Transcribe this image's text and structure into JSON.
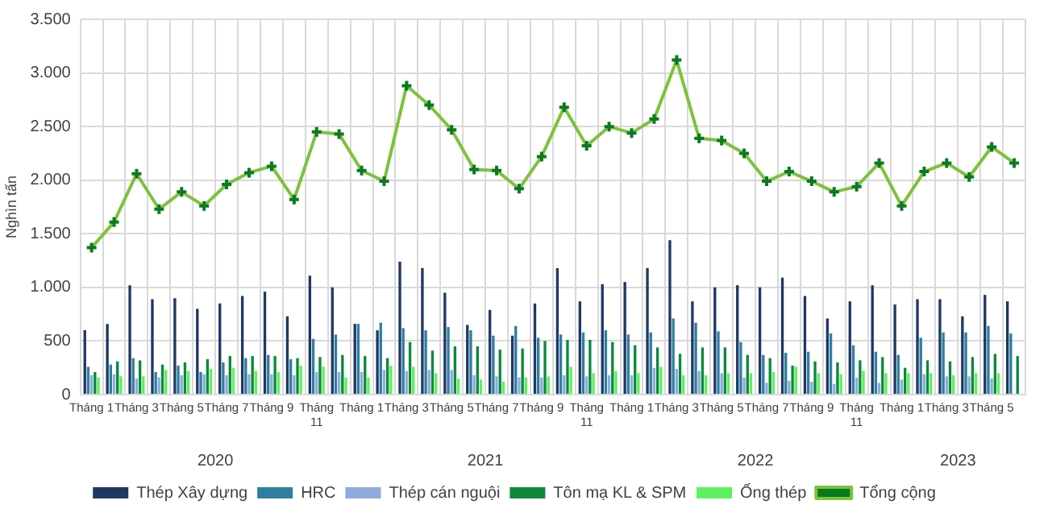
{
  "chart_data": {
    "type": "bar",
    "ylabel": "Nghìn tấn",
    "categories": [
      "Tháng 1",
      null,
      "Tháng 3",
      null,
      "Tháng 5",
      null,
      "Tháng 7",
      null,
      "Tháng 9",
      null,
      "Tháng 11",
      null,
      "Tháng 1",
      null,
      "Tháng 3",
      null,
      "Tháng 5",
      null,
      "Tháng 7",
      null,
      "Tháng 9",
      null,
      "Tháng 11",
      null,
      "Tháng 1",
      null,
      "Tháng 3",
      null,
      "Tháng 5",
      null,
      "Tháng 7",
      null,
      "Tháng 9",
      null,
      "Tháng 11",
      null,
      "Tháng 1",
      null,
      "Tháng 3",
      null,
      "Tháng 5",
      null
    ],
    "series": [
      {
        "name": "Thép Xây dựng",
        "color": "#1f3864",
        "values": [
          600,
          660,
          1020,
          890,
          900,
          800,
          850,
          920,
          960,
          730,
          1110,
          1000,
          660,
          600,
          1240,
          1180,
          950,
          650,
          790,
          550,
          850,
          1180,
          870,
          1030,
          1050,
          1180,
          1440,
          870,
          1000,
          1020,
          1000,
          1090,
          920,
          710,
          870,
          1020,
          840,
          890,
          890,
          730,
          930,
          870
        ]
      },
      {
        "name": "HRC",
        "color": "#2e7fa0",
        "values": [
          260,
          280,
          340,
          210,
          270,
          210,
          300,
          340,
          370,
          330,
          520,
          560,
          660,
          670,
          620,
          600,
          630,
          600,
          550,
          640,
          530,
          560,
          580,
          600,
          560,
          580,
          710,
          670,
          590,
          490,
          370,
          390,
          400,
          570,
          460,
          400,
          370,
          530,
          580,
          580,
          640,
          570
        ]
      },
      {
        "name": "Thép cán nguội",
        "color": "#8faadc",
        "values": [
          180,
          190,
          150,
          160,
          180,
          190,
          180,
          190,
          190,
          180,
          210,
          210,
          210,
          230,
          220,
          230,
          230,
          180,
          170,
          160,
          160,
          180,
          170,
          180,
          180,
          250,
          240,
          220,
          200,
          160,
          110,
          130,
          120,
          100,
          160,
          110,
          140,
          190,
          170,
          170,
          150,
          null
        ]
      },
      {
        "name": "Tôn mạ KL & SPM",
        "color": "#0b8a3a",
        "values": [
          210,
          310,
          320,
          280,
          300,
          330,
          360,
          360,
          360,
          340,
          350,
          370,
          360,
          340,
          490,
          410,
          450,
          450,
          420,
          430,
          500,
          510,
          510,
          490,
          460,
          440,
          380,
          440,
          440,
          370,
          340,
          270,
          310,
          300,
          320,
          350,
          250,
          320,
          310,
          350,
          380,
          360
        ]
      },
      {
        "name": "Ống thép",
        "color": "#5ef05e",
        "values": [
          160,
          170,
          170,
          230,
          220,
          240,
          250,
          220,
          210,
          270,
          260,
          160,
          160,
          270,
          260,
          200,
          150,
          140,
          120,
          160,
          170,
          260,
          200,
          220,
          200,
          260,
          180,
          180,
          200,
          200,
          210,
          260,
          200,
          190,
          220,
          200,
          200,
          200,
          180,
          200,
          200,
          null
        ]
      },
      {
        "name": "Tổng cộng",
        "type": "line",
        "color": "#7dc23b",
        "marker": "cross",
        "values": [
          1370,
          1610,
          2060,
          1730,
          1890,
          1760,
          1960,
          2070,
          2130,
          1820,
          2450,
          2430,
          2090,
          1990,
          2880,
          2700,
          2470,
          2100,
          2090,
          1920,
          2220,
          2680,
          2320,
          2500,
          2440,
          2570,
          3120,
          2390,
          2370,
          2250,
          1990,
          2080,
          1990,
          1890,
          1940,
          2160,
          1760,
          2080,
          2160,
          2030,
          2310,
          2160
        ]
      }
    ],
    "ylim": [
      0,
      3500
    ],
    "yticks": [
      0,
      500,
      {
        "value": 1000,
        "label": "1.000"
      },
      {
        "value": 1500,
        "label": "1.500"
      },
      {
        "value": 2000,
        "label": "2.000"
      },
      {
        "value": 2500,
        "label": "2.500"
      },
      {
        "value": 3000,
        "label": "3.000"
      },
      {
        "value": 3500,
        "label": "3.500"
      }
    ],
    "annotations": [
      "2020",
      "2021",
      "2022",
      "2023"
    ],
    "grid": true,
    "legend": "bottom"
  }
}
